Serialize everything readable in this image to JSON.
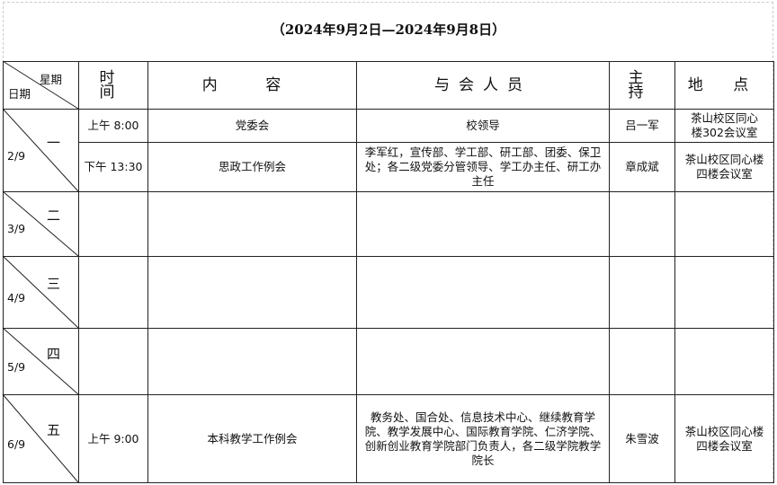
{
  "title": "（2024年9月2日—2024年9月8日）",
  "header": {
    "weekday": "星期",
    "date": "日期",
    "time": "时 间",
    "content": "内  容",
    "attendees": "与会人员",
    "host": "主 持",
    "location": "地 点"
  },
  "days": [
    {
      "weekday": "一",
      "date": "2/9",
      "events": [
        {
          "time": "上午 8:00",
          "content": "党委会",
          "attendees": "校领导",
          "host": "吕一军",
          "location": "茶山校区同心楼302会议室"
        },
        {
          "time": "下午 13:30",
          "content": "思政工作例会",
          "attendees": "李军红，宣传部、学工部、研工部、团委、保卫处；各二级党委分管领导、学工办主任、研工办主任",
          "host": "章成斌",
          "location": "茶山校区同心楼四楼会议室"
        }
      ]
    },
    {
      "weekday": "二",
      "date": "3/9",
      "events": []
    },
    {
      "weekday": "三",
      "date": "4/9",
      "events": []
    },
    {
      "weekday": "四",
      "date": "5/9",
      "events": []
    },
    {
      "weekday": "五",
      "date": "6/9",
      "events": [
        {
          "time": "上午 9:00",
          "content": "本科教学工作例会",
          "attendees": "教务处、国合处、信息技术中心、继续教育学院、教学发展中心、国际教育学院、仁济学院、创新创业教育学院部门负责人，各二级学院教学院长",
          "host": "朱雪波",
          "location": "茶山校区同心楼四楼会议室"
        }
      ]
    }
  ]
}
